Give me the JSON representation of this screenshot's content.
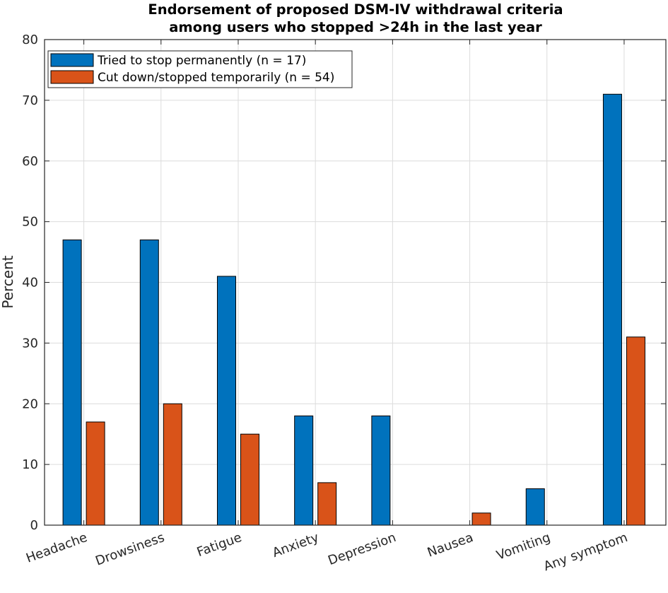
{
  "chart_data": {
    "type": "bar",
    "title": [
      "Endorsement of proposed DSM-IV withdrawal criteria",
      "among users who stopped >24h in the last year"
    ],
    "xlabel": "",
    "ylabel": "Percent",
    "ylim": [
      0,
      80
    ],
    "yticks": [
      "0",
      "10",
      "20",
      "30",
      "40",
      "50",
      "60",
      "70",
      "80"
    ],
    "grid": true,
    "legend_position": "top-left",
    "categories": [
      "Headache",
      "Drowsiness",
      "Fatigue",
      "Anxiety",
      "Depression",
      "Nausea",
      "Vomiting",
      "Any symptom"
    ],
    "series": [
      {
        "name": "Tried to stop permanently (n = 17)",
        "color": "#0072BD",
        "values": [
          47,
          47,
          41,
          18,
          18,
          0,
          6,
          71
        ]
      },
      {
        "name": "Cut down/stopped temporarily (n = 54)",
        "color": "#D95319",
        "values": [
          17,
          20,
          15,
          7,
          0,
          2,
          0,
          31
        ]
      }
    ]
  }
}
